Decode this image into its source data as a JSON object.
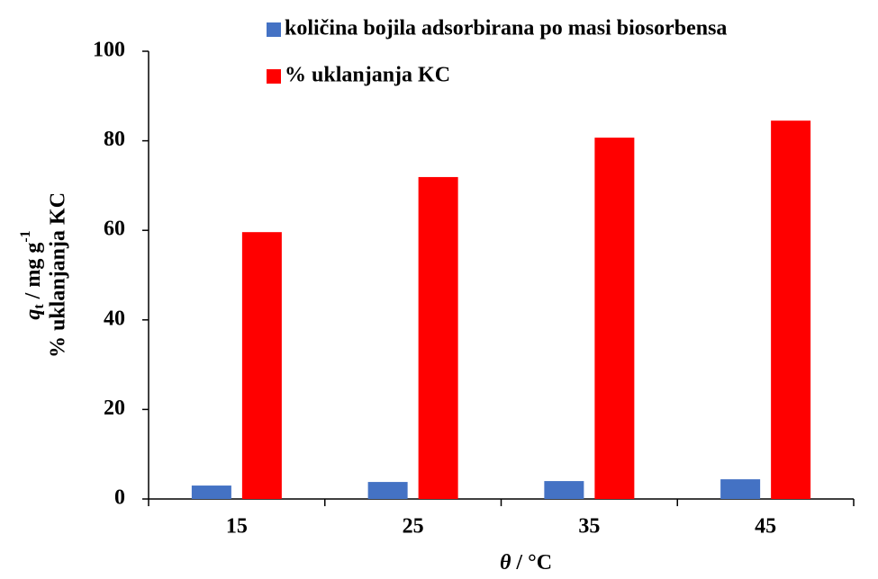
{
  "chart_data": {
    "type": "bar",
    "xlabel": [
      "θ",
      " / °C"
    ],
    "ylabel": {
      "line1": [
        "q",
        "t",
        " / mg g",
        "-1"
      ],
      "line2": "% uklanjanja KC"
    },
    "categories": [
      "15",
      "25",
      "35",
      "45"
    ],
    "series": [
      {
        "name": "količina bojila adsorbirana po masi biosorbensa",
        "color": "#4472c4",
        "values": [
          3.0,
          3.8,
          4.0,
          4.4
        ]
      },
      {
        "name": "% uklanjanja KC",
        "color": "#ff0000",
        "values": [
          59.6,
          71.9,
          80.7,
          84.5
        ]
      }
    ],
    "ylim": [
      0,
      100
    ],
    "yticks": [
      0,
      20,
      40,
      60,
      80,
      100
    ],
    "grid": false,
    "legend": "top-right"
  }
}
